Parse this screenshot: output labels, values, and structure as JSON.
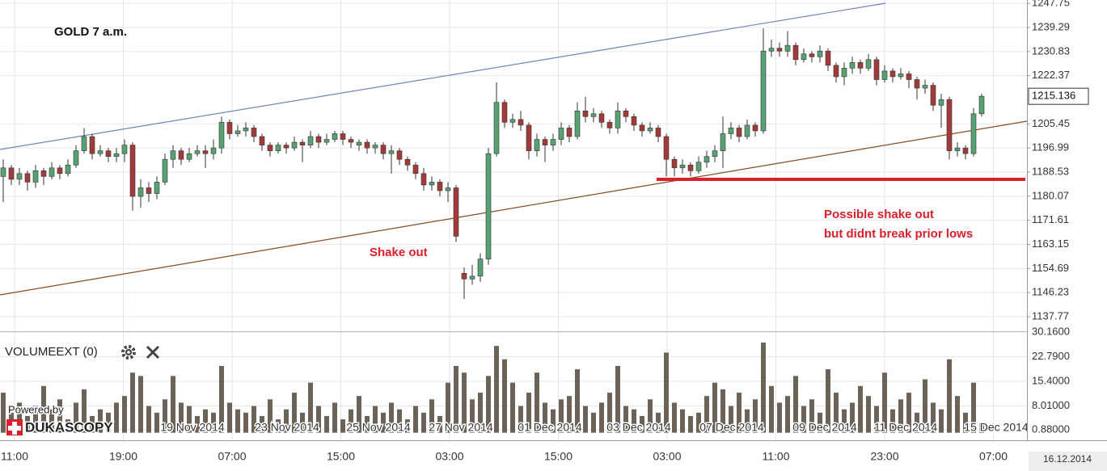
{
  "chart_data": {
    "type": "candlestick",
    "title": "GOLD 7 a.m.",
    "annotations": [
      "Shake out",
      "Possible shake out",
      "but didnt break prior lows"
    ],
    "up_color": "#57a273",
    "down_color": "#a33a3a",
    "ylim": [
      1132.66,
      1248.93
    ],
    "yticks": [
      1247.75,
      1239.29,
      1230.83,
      1222.37,
      1205.45,
      1196.99,
      1188.53,
      1180.07,
      1171.61,
      1163.15,
      1154.69,
      1146.23,
      1137.77
    ],
    "open": [
      1187,
      1190,
      1186,
      1188,
      1185,
      1189,
      1187,
      1190,
      1188,
      1191,
      1196,
      1201,
      1195,
      1196,
      1194,
      1195,
      1198,
      1180,
      1183,
      1181,
      1185,
      1193,
      1196,
      1193,
      1195,
      1196,
      1195,
      1197,
      1206,
      1202,
      1203,
      1204,
      1201,
      1198,
      1196,
      1198,
      1197,
      1199,
      1198,
      1201,
      1199,
      1200,
      1202,
      1200,
      1198,
      1199,
      1197,
      1198,
      1195,
      1196,
      1193,
      1191,
      1188,
      1184,
      1185,
      1182,
      1183,
      1153,
      1151,
      1152,
      1158,
      1195,
      1213,
      1206,
      1207,
      1205,
      1196,
      1200,
      1198,
      1200,
      1204,
      1201,
      1210,
      1208,
      1209,
      1206,
      1204,
      1210,
      1208,
      1205,
      1203,
      1204,
      1201,
      1193,
      1190,
      1191,
      1189,
      1192,
      1194,
      1196,
      1202,
      1204,
      1201,
      1205,
      1203,
      1231,
      1232,
      1231,
      1233,
      1228,
      1230,
      1229,
      1231,
      1226,
      1222,
      1225,
      1227,
      1225,
      1228,
      1221,
      1224,
      1222,
      1223,
      1221,
      1218,
      1219,
      1212,
      1214,
      1196,
      1197,
      1195,
      1209
    ],
    "high": [
      1193,
      1191,
      1190,
      1189,
      1191,
      1190,
      1192,
      1191,
      1193,
      1198,
      1204,
      1202,
      1198,
      1197,
      1197,
      1200,
      1199,
      1186,
      1185,
      1187,
      1195,
      1198,
      1197,
      1197,
      1198,
      1198,
      1200,
      1208,
      1207,
      1205,
      1206,
      1205,
      1202,
      1199,
      1199,
      1199,
      1201,
      1200,
      1203,
      1202,
      1202,
      1203,
      1203,
      1201,
      1200,
      1200,
      1199,
      1199,
      1198,
      1197,
      1194,
      1192,
      1190,
      1187,
      1186,
      1185,
      1184,
      1155,
      1156,
      1160,
      1197,
      1220,
      1214,
      1209,
      1210,
      1206,
      1202,
      1201,
      1202,
      1206,
      1205,
      1213,
      1215,
      1211,
      1210,
      1207,
      1213,
      1211,
      1209,
      1206,
      1206,
      1205,
      1202,
      1194,
      1193,
      1192,
      1194,
      1196,
      1198,
      1208,
      1206,
      1205,
      1207,
      1206,
      1239,
      1235,
      1234,
      1238,
      1234,
      1232,
      1231,
      1233,
      1232,
      1227,
      1227,
      1229,
      1228,
      1230,
      1229,
      1226,
      1225,
      1225,
      1224,
      1222,
      1221,
      1220,
      1216,
      1215,
      1199,
      1198,
      1211,
      1216
    ],
    "low": [
      1178,
      1184,
      1184,
      1182,
      1183,
      1184,
      1186,
      1186,
      1187,
      1190,
      1195,
      1193,
      1194,
      1192,
      1192,
      1192,
      1175,
      1176,
      1178,
      1179,
      1184,
      1190,
      1191,
      1192,
      1194,
      1190,
      1193,
      1195,
      1200,
      1201,
      1201,
      1199,
      1196,
      1194,
      1195,
      1195,
      1196,
      1192,
      1197,
      1197,
      1198,
      1199,
      1198,
      1197,
      1196,
      1195,
      1195,
      1193,
      1188,
      1191,
      1189,
      1186,
      1182,
      1182,
      1180,
      1178,
      1164,
      1144,
      1149,
      1150,
      1156,
      1194,
      1204,
      1204,
      1203,
      1193,
      1194,
      1192,
      1196,
      1198,
      1199,
      1200,
      1206,
      1206,
      1204,
      1202,
      1202,
      1206,
      1203,
      1201,
      1202,
      1199,
      1187,
      1187,
      1188,
      1187,
      1188,
      1190,
      1192,
      1190,
      1200,
      1199,
      1200,
      1201,
      1202,
      1229,
      1229,
      1229,
      1226,
      1227,
      1227,
      1227,
      1224,
      1220,
      1219,
      1223,
      1223,
      1224,
      1219,
      1220,
      1220,
      1221,
      1218,
      1214,
      1216,
      1210,
      1204,
      1193,
      1194,
      1193,
      1194,
      1208
    ],
    "close": [
      1190,
      1186,
      1188,
      1185,
      1189,
      1187,
      1190,
      1188,
      1191,
      1196,
      1201,
      1195,
      1196,
      1194,
      1195,
      1198,
      1180,
      1183,
      1181,
      1185,
      1193,
      1196,
      1193,
      1195,
      1196,
      1195,
      1197,
      1206,
      1202,
      1203,
      1204,
      1201,
      1198,
      1196,
      1198,
      1197,
      1199,
      1198,
      1201,
      1199,
      1200,
      1202,
      1200,
      1199,
      1199,
      1197,
      1198,
      1195,
      1196,
      1193,
      1191,
      1188,
      1184,
      1185,
      1182,
      1183,
      1166,
      1151,
      1152,
      1158,
      1195,
      1213,
      1206,
      1207,
      1205,
      1196,
      1200,
      1198,
      1200,
      1204,
      1201,
      1210,
      1208,
      1209,
      1206,
      1204,
      1210,
      1208,
      1205,
      1203,
      1204,
      1201,
      1193,
      1190,
      1191,
      1189,
      1192,
      1194,
      1196,
      1202,
      1204,
      1201,
      1205,
      1203,
      1231,
      1232,
      1231,
      1233,
      1228,
      1230,
      1229,
      1231,
      1226,
      1222,
      1225,
      1227,
      1225,
      1228,
      1221,
      1224,
      1222,
      1223,
      1221,
      1218,
      1219,
      1212,
      1214,
      1196,
      1197,
      1195,
      1209,
      1215.136
    ],
    "time_labels": [
      "11:00",
      "19:00",
      "07:00",
      "15:00",
      "03:00",
      "15:00",
      "03:00",
      "11:00",
      "23:00",
      "07:00"
    ],
    "date_labels": [
      "19 Nov 2014",
      "23 Nov 2014",
      "25 Nov 2014",
      "27 Nov 2014",
      "01 Dec 2014",
      "03 Dec 2014",
      "07 Dec 2014",
      "09 Dec 2014",
      "11 Dec 2014",
      "15 Dec 2014"
    ],
    "date": "16.12.2014",
    "volume": {
      "title": "VOLUMEEXT (0)",
      "color": "#6c6358",
      "ylim": [
        -2.27,
        30.16
      ],
      "yticks": [
        {
          "value": 30.16,
          "label": "30.1600"
        },
        {
          "value": 22.79,
          "label": "22.7900"
        },
        {
          "value": 15.4,
          "label": "15.4000"
        },
        {
          "value": 8.01,
          "label": "8.01000"
        },
        {
          "value": 0.88,
          "label": "0.88000"
        }
      ],
      "values": [
        12,
        6,
        9,
        5,
        8,
        14,
        7,
        10,
        4,
        9,
        13,
        5,
        7,
        6,
        9,
        11,
        18,
        17,
        8,
        6,
        10,
        17,
        9,
        8,
        5,
        7,
        6,
        20,
        9,
        7,
        6,
        8,
        5,
        10,
        4,
        7,
        12,
        6,
        15,
        8,
        5,
        9,
        4,
        7,
        11,
        5,
        8,
        6,
        9,
        7,
        4,
        8,
        6,
        10,
        5,
        15,
        20,
        18,
        10,
        12,
        17,
        26,
        22,
        15,
        8,
        12,
        18,
        9,
        7,
        10,
        11,
        19,
        8,
        6,
        9,
        12,
        20,
        8,
        7,
        5,
        10,
        6,
        24,
        9,
        7,
        5,
        6,
        11,
        15,
        13,
        8,
        12,
        7,
        10,
        27,
        14,
        9,
        11,
        17,
        8,
        10,
        6,
        19,
        12,
        7,
        9,
        14,
        11,
        8,
        18,
        7,
        10,
        12,
        6,
        16,
        9,
        7,
        22,
        11,
        6,
        15,
        3
      ]
    }
  },
  "branding": {
    "line1": "Powered by",
    "line2": "DUKASCOPY"
  }
}
